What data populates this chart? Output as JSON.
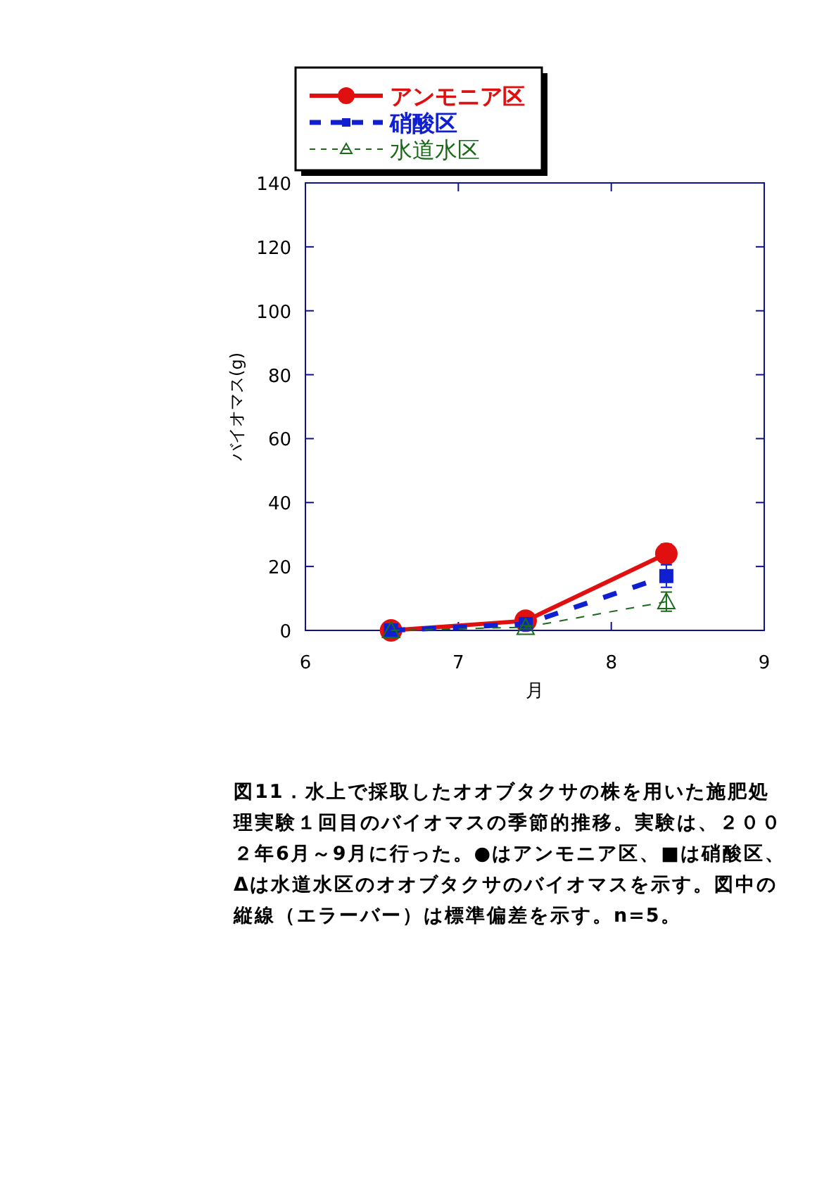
{
  "chart_data": {
    "type": "line",
    "xlabel": "月",
    "ylabel": "バイオマス(g)",
    "x": [
      6.56,
      7.44,
      8.36
    ],
    "series": [
      {
        "name": "アンモニア区",
        "color": "#e01010",
        "values": [
          0,
          3,
          24
        ],
        "errors": [
          null,
          1,
          3
        ],
        "marker": "circle",
        "line_style": "solid"
      },
      {
        "name": "硝酸区",
        "color": "#1020d0",
        "values": [
          0,
          2,
          17
        ],
        "errors": [
          null,
          1,
          3.5
        ],
        "marker": "square",
        "line_style": "dashed"
      },
      {
        "name": "水道水区",
        "color": "#1a6a1a",
        "values": [
          0,
          1,
          9
        ],
        "errors": [
          null,
          0.5,
          3
        ],
        "marker": "triangle",
        "line_style": "dashed"
      }
    ],
    "xlim": [
      6,
      9
    ],
    "xticks": [
      6,
      7,
      8,
      9
    ],
    "ylim": [
      0,
      140
    ],
    "yticks": [
      0,
      20,
      40,
      60,
      80,
      100,
      120,
      140
    ],
    "grid": false,
    "legend": "top left",
    "annotations": [
      "図11．水上で採取したオオブタクサの株を用いた施肥処理実験１回目のバイオマスの季節的推移。実験は、２００２年6月～9月に行った。●はアンモニア区、■は硝酸区、Δは水道水区のオオブタクサのバイオマスを示す。図中の縦線（エラーバー）は標準偏差を示す。n=5。"
    ]
  }
}
